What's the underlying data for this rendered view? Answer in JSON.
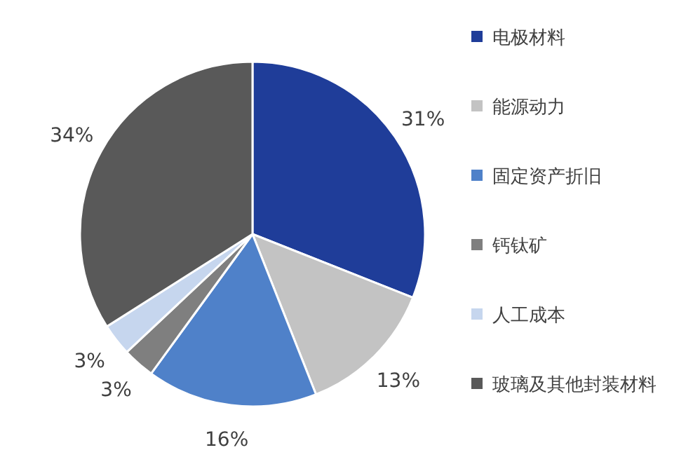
{
  "chart_data": {
    "type": "pie",
    "categories": [
      "电极材料",
      "能源动力",
      "固定资产折旧",
      "钙钛矿",
      "人工成本",
      "玻璃及其他封装材料"
    ],
    "values": [
      31,
      13,
      16,
      3,
      3,
      34
    ],
    "value_labels": [
      "31%",
      "13%",
      "16%",
      "3%",
      "3%",
      "34%"
    ],
    "colors": [
      "#1f3d99",
      "#c3c3c3",
      "#4f81c9",
      "#7f7f7f",
      "#c6d6ee",
      "#595959"
    ],
    "legend": "right"
  }
}
